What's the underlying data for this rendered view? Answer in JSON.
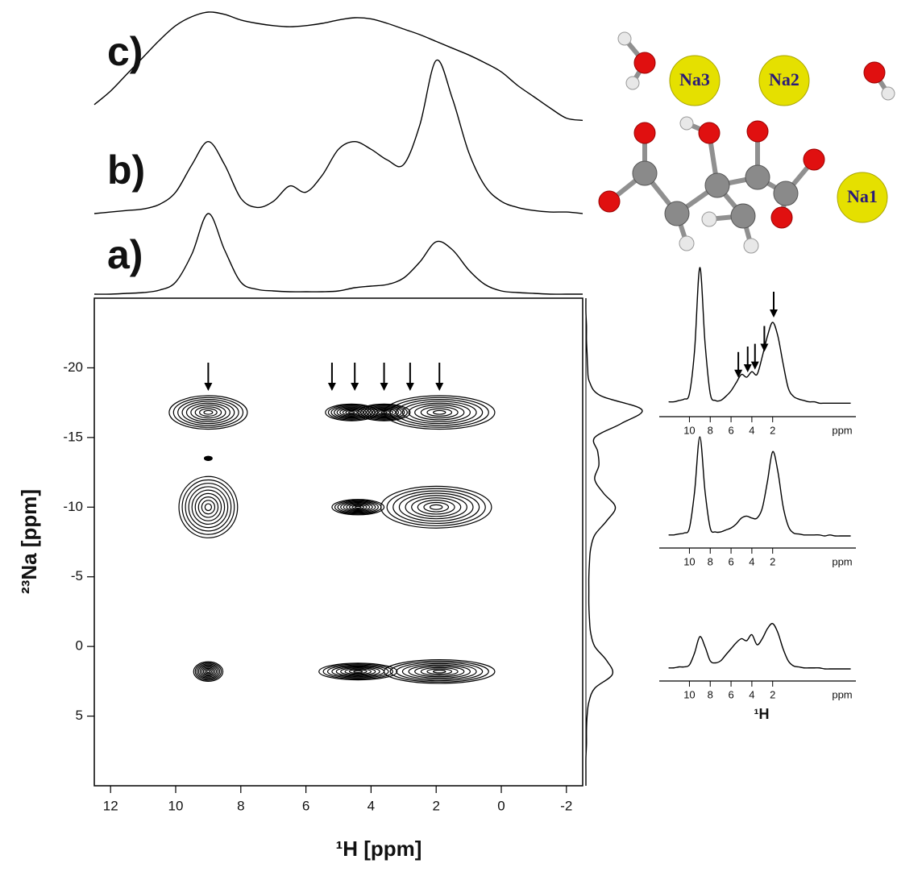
{
  "chart_data": [
    {
      "type": "contour",
      "xlabel": "¹H [ppm]",
      "ylabel": "²³Na [ppm]",
      "xlim": [
        12.5,
        -2.5
      ],
      "xticks": [
        12,
        10,
        8,
        6,
        4,
        2,
        0,
        -2
      ],
      "ylim": [
        -25,
        10
      ],
      "yticks": [
        -20,
        -15,
        -10,
        -5,
        0,
        5
      ],
      "levels": 9,
      "peaks": [
        {
          "x": 9,
          "y": -16.8,
          "wx": 1.2,
          "wy": 1.2
        },
        {
          "x": 4.6,
          "y": -16.8,
          "wx": 0.8,
          "wy": 0.6
        },
        {
          "x": 3.6,
          "y": -16.8,
          "wx": 0.8,
          "wy": 0.6
        },
        {
          "x": 1.9,
          "y": -16.8,
          "wx": 1.7,
          "wy": 1.2
        },
        {
          "x": 9,
          "y": -13.5,
          "wx": 0.12,
          "wy": 0.15
        },
        {
          "x": 9,
          "y": -10,
          "wx": 0.9,
          "wy": 2.2
        },
        {
          "x": 4.4,
          "y": -10,
          "wx": 0.8,
          "wy": 0.55
        },
        {
          "x": 2,
          "y": -10,
          "wx": 1.7,
          "wy": 1.5
        },
        {
          "x": 9,
          "y": 1.8,
          "wx": 0.45,
          "wy": 0.7
        },
        {
          "x": 4.4,
          "y": 1.8,
          "wx": 1.2,
          "wy": 0.6
        },
        {
          "x": 1.9,
          "y": 1.8,
          "wx": 1.7,
          "wy": 0.85
        }
      ],
      "arrows_x": [
        9,
        5.2,
        4.5,
        3.6,
        2.8,
        1.9
      ]
    },
    {
      "type": "line",
      "x": [
        12.5,
        12,
        11.5,
        11,
        10.5,
        10,
        9.5,
        9,
        8.5,
        8,
        7.5,
        7,
        6.5,
        6,
        5.5,
        5,
        4.5,
        4,
        3.5,
        3,
        2.5,
        2,
        1.5,
        1,
        0.5,
        0,
        -0.5,
        -1,
        -1.5,
        -2,
        -2.5
      ],
      "xlim": [
        12.5,
        -2.5
      ],
      "color": "#000000",
      "series": [
        {
          "name": "c)",
          "values": [
            18,
            30,
            45,
            60,
            75,
            88,
            96,
            100,
            98,
            93,
            90,
            88,
            87,
            88,
            90,
            93,
            95,
            94,
            90,
            85,
            80,
            74,
            68,
            62,
            55,
            47,
            35,
            25,
            15,
            6,
            4
          ]
        },
        {
          "name": "b)",
          "values": [
            0,
            1,
            2,
            3,
            6,
            14,
            32,
            47,
            32,
            10,
            4,
            8,
            18,
            14,
            25,
            42,
            47,
            42,
            35,
            32,
            58,
            100,
            75,
            40,
            18,
            8,
            4,
            2,
            1,
            1,
            0
          ]
        },
        {
          "name": "a)",
          "values": [
            0,
            0,
            1,
            2,
            5,
            15,
            50,
            100,
            55,
            15,
            6,
            4,
            3,
            3,
            3,
            4,
            8,
            10,
            12,
            20,
            40,
            65,
            55,
            30,
            12,
            4,
            2,
            1,
            0,
            0,
            0
          ]
        }
      ]
    },
    {
      "type": "projection",
      "x": [
        -25,
        -24,
        -23,
        -22,
        -21,
        -20,
        -19,
        -18,
        -17,
        -16,
        -15,
        -14,
        -13,
        -12,
        -11,
        -10,
        -9,
        -8,
        -7,
        -6,
        -5,
        -4,
        -3,
        -2,
        -1,
        0,
        1,
        2,
        3,
        4,
        5,
        6,
        7,
        8,
        9,
        10
      ],
      "values": [
        0,
        0,
        1,
        1,
        2,
        3,
        6,
        25,
        95,
        60,
        15,
        20,
        22,
        15,
        30,
        50,
        35,
        15,
        8,
        6,
        5,
        5,
        5,
        6,
        8,
        15,
        35,
        45,
        15,
        5,
        2,
        1,
        1,
        0,
        0,
        0
      ]
    },
    {
      "type": "line",
      "xlim": [
        12.9,
        -6
      ],
      "xticks": [
        10,
        8,
        6,
        4,
        2
      ],
      "xunit": "ppm",
      "x": [
        12,
        11.5,
        11,
        10.5,
        10,
        9.5,
        9,
        8.5,
        8,
        7.5,
        7,
        6.5,
        6,
        5.5,
        5,
        4.5,
        4,
        3.5,
        3,
        2.5,
        2,
        1.5,
        1,
        0.5,
        0,
        -0.5,
        -1,
        -1.5,
        -2,
        -2.5,
        -3,
        -3.5,
        -4,
        -4.5,
        -5,
        -5.5
      ],
      "values": [
        2,
        2,
        3,
        4,
        8,
        40,
        100,
        45,
        8,
        3,
        3,
        6,
        10,
        16,
        22,
        20,
        24,
        22,
        35,
        50,
        60,
        50,
        30,
        12,
        6,
        4,
        3,
        2,
        2,
        1,
        1,
        1,
        1,
        1,
        1,
        1
      ],
      "arrows_x": [
        5.3,
        4.4,
        3.7,
        2.8,
        1.9
      ]
    },
    {
      "type": "line",
      "xlim": [
        12.9,
        -6
      ],
      "xticks": [
        10,
        8,
        6,
        4,
        2
      ],
      "xunit": "ppm",
      "x": [
        12,
        11.5,
        11,
        10.5,
        10,
        9.5,
        9,
        8.5,
        8,
        7.5,
        7,
        6.5,
        6,
        5.5,
        5,
        4.5,
        4,
        3.5,
        3,
        2.5,
        2,
        1.5,
        1,
        0.5,
        0,
        -0.5,
        -1,
        -1.5,
        -2,
        -2.5,
        -3,
        -3.5,
        -4,
        -4.5,
        -5,
        -5.5
      ],
      "values": [
        1,
        1,
        2,
        3,
        8,
        45,
        100,
        45,
        8,
        4,
        4,
        6,
        8,
        12,
        18,
        20,
        18,
        18,
        28,
        55,
        85,
        65,
        30,
        10,
        3,
        2,
        1,
        1,
        1,
        1,
        0,
        1,
        0,
        0,
        0,
        0
      ]
    },
    {
      "type": "line",
      "xlim": [
        12.9,
        -6
      ],
      "xticks": [
        10,
        8,
        6,
        4,
        2
      ],
      "xunit": "ppm",
      "xlabel": "¹H",
      "x": [
        12,
        11.5,
        11,
        10.5,
        10,
        9.5,
        9,
        8.5,
        8,
        7.5,
        7,
        6.5,
        6,
        5.5,
        5,
        4.5,
        4,
        3.5,
        3,
        2.5,
        2,
        1.5,
        1,
        0.5,
        0,
        -0.5,
        -1,
        -1.5,
        -2,
        -2.5,
        -3,
        -3.5,
        -4,
        -4.5,
        -5,
        -5.5
      ],
      "values": [
        1,
        1,
        2,
        2,
        4,
        16,
        32,
        22,
        8,
        6,
        8,
        14,
        20,
        26,
        30,
        28,
        34,
        24,
        30,
        40,
        45,
        36,
        20,
        8,
        3,
        2,
        1,
        1,
        1,
        1,
        0,
        0,
        0,
        0,
        0,
        0
      ]
    }
  ],
  "molecule": {
    "labels": [
      "Na3",
      "Na2",
      "Na1"
    ]
  }
}
